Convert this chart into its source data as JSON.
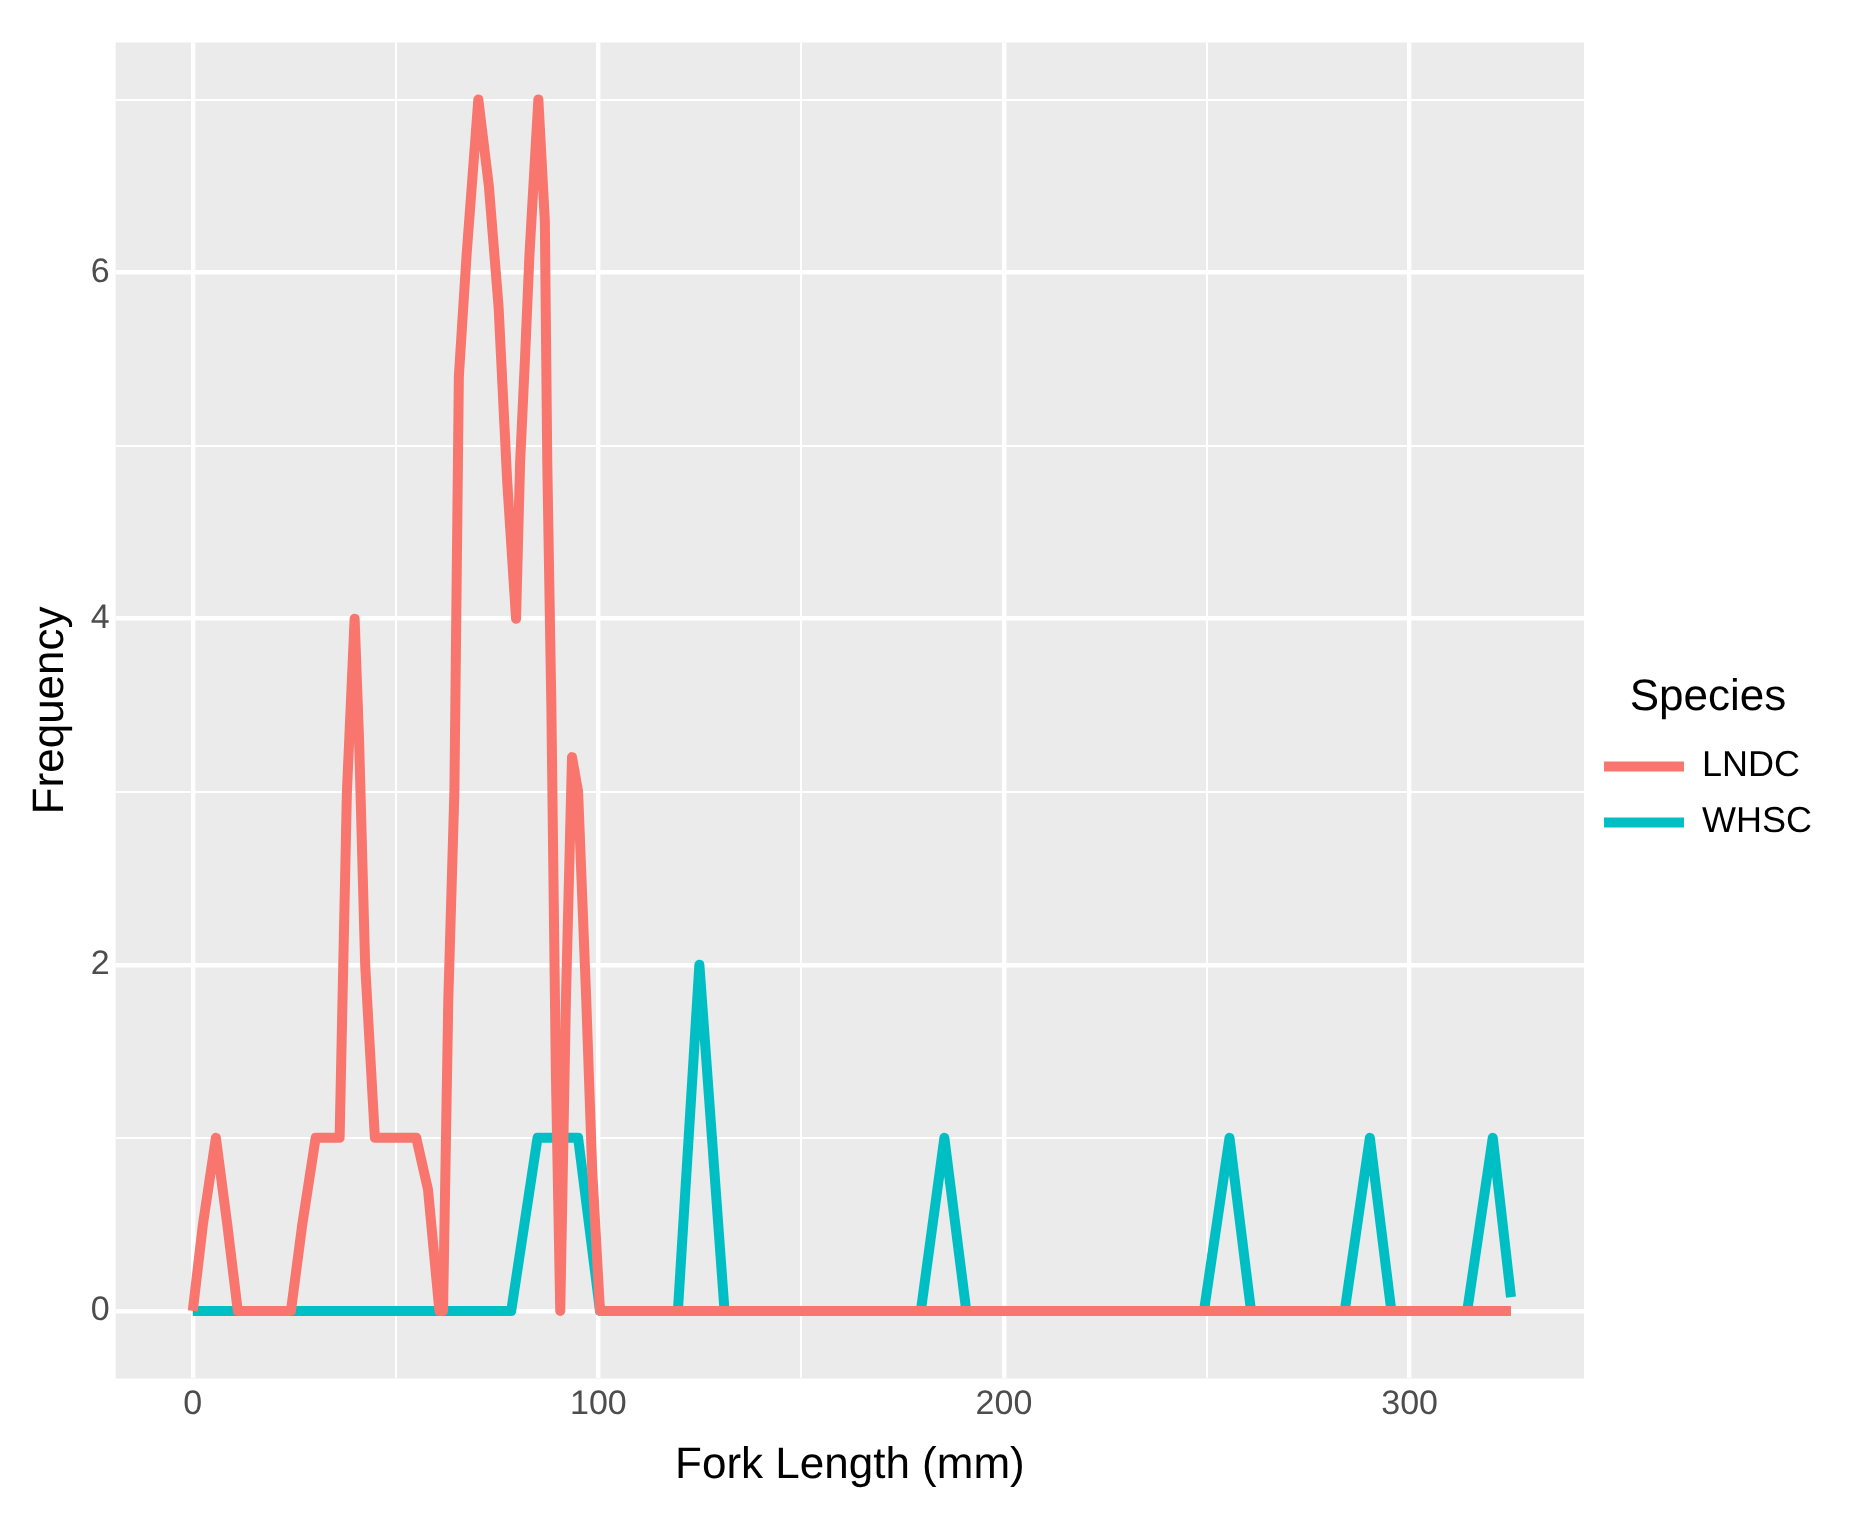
{
  "chart_data": {
    "type": "line",
    "xlabel": "Fork Length (mm)",
    "ylabel": "Frequency",
    "legend_title": "Species",
    "legend": "right",
    "grid": true,
    "marker": "none",
    "line_style": "solid",
    "xlim": [
      -19,
      343
    ],
    "xticks": [
      0,
      {
        "value": 50,
        "label": null
      },
      100,
      {
        "value": 150,
        "label": null
      },
      200,
      {
        "value": 250,
        "label": null
      },
      300
    ],
    "ylim": [
      -0.39,
      7.33
    ],
    "yticks": [
      0,
      {
        "value": 1,
        "label": null
      },
      2,
      {
        "value": 3,
        "label": null
      },
      4,
      {
        "value": 5,
        "label": null
      },
      6,
      {
        "value": 7,
        "label": null
      }
    ],
    "series": [
      {
        "name": "LNDC",
        "color": "#f8766d",
        "x": [
          0,
          2.5,
          5.7,
          8.5,
          11.1,
          24.2,
          27,
          30.3,
          36.2,
          38,
          39.9,
          41,
          42.5,
          44.9,
          55.1,
          58,
          60.8,
          61.7,
          63,
          64.5,
          65.6,
          67.5,
          70.4,
          73,
          75.4,
          77.5,
          79.7,
          80.7,
          81.9,
          83,
          85.2,
          86.8,
          87.4,
          88.4,
          89.5,
          90.6,
          92,
          93.5,
          95,
          97,
          98.5,
          100.4,
          325
        ],
        "values": [
          0,
          0.5,
          1,
          0.5,
          0,
          0,
          0.5,
          1,
          1,
          3,
          4,
          3.3,
          2,
          1,
          1,
          0.7,
          0,
          0,
          1.8,
          3,
          5.4,
          6.1,
          7,
          6.5,
          5.8,
          4.8,
          4,
          4.9,
          5.5,
          6.1,
          7,
          6.3,
          4.9,
          3.5,
          1.4,
          0,
          1.8,
          3.2,
          3,
          1.8,
          0.8,
          0,
          0
        ]
      },
      {
        "name": "WHSC",
        "color": "#00bfc4",
        "x": [
          0,
          78.5,
          85,
          95,
          100.4,
          119.6,
          124.9,
          131.1,
          179.5,
          185.3,
          190.7,
          249.3,
          255.6,
          260.9,
          284,
          290.2,
          295.5,
          314.2,
          320.5,
          325
        ],
        "values": [
          0,
          0,
          1,
          1,
          0,
          0,
          2,
          0,
          0,
          1,
          0,
          0,
          1,
          0,
          0,
          1,
          0,
          0,
          1,
          0.08
        ]
      }
    ]
  }
}
